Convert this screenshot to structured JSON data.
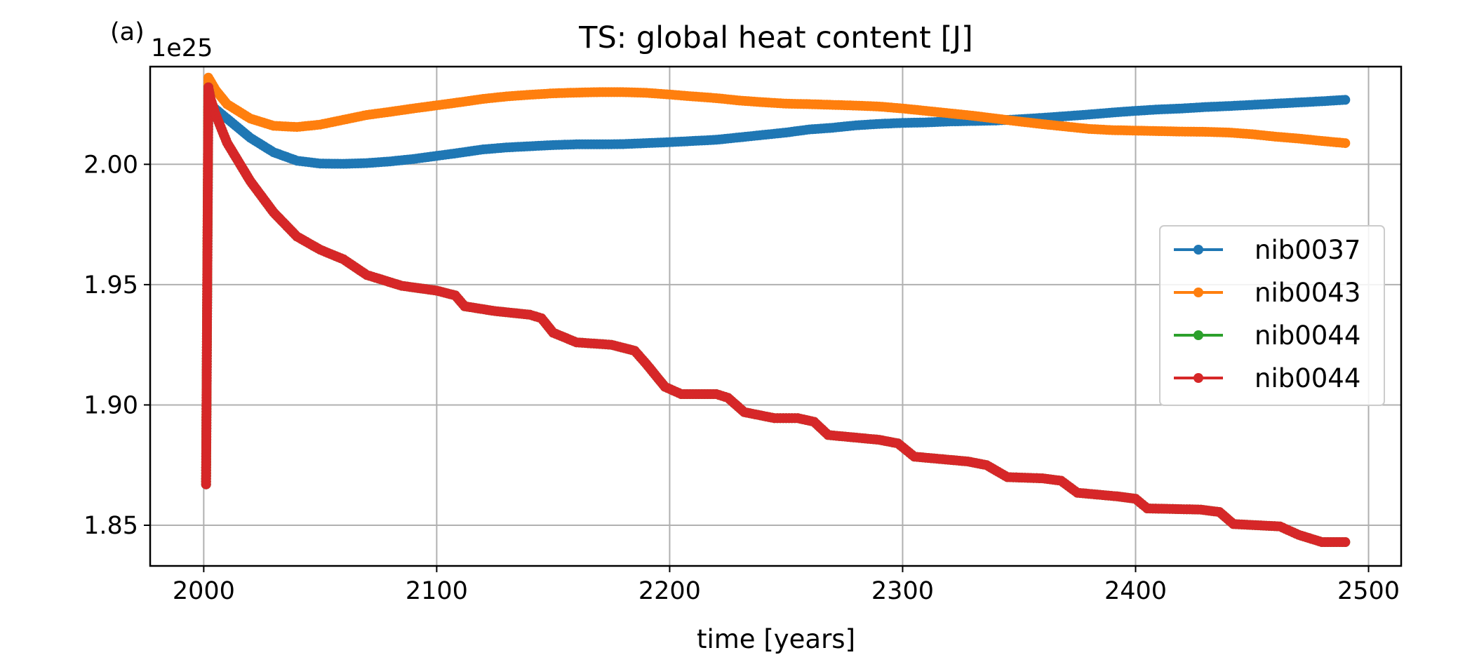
{
  "panel_label": "(a)",
  "offset_label": "1e25",
  "chart_data": {
    "type": "line",
    "title": "TS: global heat content [J]",
    "xlabel": "time [years]",
    "ylabel": "",
    "xlim": [
      1977,
      2514
    ],
    "ylim": [
      1.8331,
      2.0406
    ],
    "xticks": [
      2000,
      2100,
      2200,
      2300,
      2400,
      2500
    ],
    "xtick_labels": [
      "2000",
      "2100",
      "2200",
      "2300",
      "2400",
      "2500"
    ],
    "yticks": [
      1.85,
      1.9,
      1.95,
      2.0
    ],
    "ytick_labels": [
      "1.85",
      "1.90",
      "1.95",
      "2.00"
    ],
    "y_scale_factor": "1e25",
    "grid": true,
    "legend_position": "center-right",
    "series": [
      {
        "name": "nib0037",
        "color": "#1f77b4",
        "x": [
          2001,
          2002,
          2005,
          2010,
          2020,
          2030,
          2040,
          2050,
          2060,
          2070,
          2080,
          2090,
          2100,
          2110,
          2120,
          2130,
          2140,
          2150,
          2160,
          2170,
          2180,
          2190,
          2200,
          2210,
          2220,
          2230,
          2240,
          2250,
          2260,
          2270,
          2280,
          2290,
          2300,
          2310,
          2320,
          2330,
          2340,
          2350,
          2360,
          2370,
          2380,
          2390,
          2400,
          2410,
          2420,
          2430,
          2440,
          2450,
          2460,
          2470,
          2480,
          2490
        ],
        "y": [
          1.867,
          2.025,
          2.023,
          2.019,
          2.011,
          2.005,
          2.0015,
          2.0003,
          2.0002,
          2.0005,
          2.0012,
          2.0022,
          2.0035,
          2.0048,
          2.0062,
          2.007,
          2.0075,
          2.008,
          2.0083,
          2.0083,
          2.0084,
          2.0088,
          2.0092,
          2.0097,
          2.0102,
          2.0112,
          2.0122,
          2.0132,
          2.0145,
          2.0152,
          2.0162,
          2.0168,
          2.0172,
          2.0174,
          2.0178,
          2.018,
          2.0182,
          2.0187,
          2.0193,
          2.02,
          2.0207,
          2.0215,
          2.0222,
          2.0228,
          2.0232,
          2.0238,
          2.0242,
          2.0247,
          2.0252,
          2.0257,
          2.0262,
          2.0268
        ]
      },
      {
        "name": "nib0043",
        "color": "#ff7f0e",
        "x": [
          2001,
          2002,
          2005,
          2010,
          2020,
          2030,
          2040,
          2050,
          2060,
          2070,
          2080,
          2090,
          2100,
          2110,
          2120,
          2130,
          2140,
          2150,
          2160,
          2170,
          2180,
          2190,
          2200,
          2210,
          2220,
          2230,
          2240,
          2250,
          2260,
          2270,
          2280,
          2290,
          2300,
          2310,
          2320,
          2330,
          2340,
          2350,
          2360,
          2370,
          2380,
          2390,
          2400,
          2410,
          2420,
          2430,
          2440,
          2450,
          2460,
          2470,
          2480,
          2490
        ],
        "y": [
          1.868,
          2.036,
          2.031,
          2.025,
          2.019,
          2.016,
          2.0155,
          2.0165,
          2.0185,
          2.0205,
          2.0218,
          2.0232,
          2.0245,
          2.0258,
          2.0272,
          2.0282,
          2.0289,
          2.0295,
          2.0298,
          2.03,
          2.03,
          2.0297,
          2.029,
          2.0282,
          2.0275,
          2.0265,
          2.0258,
          2.0252,
          2.025,
          2.0247,
          2.0244,
          2.024,
          2.0232,
          2.0222,
          2.0212,
          2.0202,
          2.019,
          2.0178,
          2.0167,
          2.0157,
          2.0147,
          2.0142,
          2.014,
          2.0138,
          2.0136,
          2.0135,
          2.0132,
          2.0125,
          2.0115,
          2.0107,
          2.0097,
          2.0088
        ]
      },
      {
        "name": "nib0044",
        "color": "#2ca02c",
        "x": [
          2001,
          2002,
          2003,
          2005,
          2010,
          2020,
          2030,
          2040,
          2050,
          2060,
          2070,
          2075,
          2085,
          2100,
          2108,
          2112,
          2125,
          2140,
          2145,
          2150,
          2160,
          2175,
          2185,
          2190,
          2198,
          2205,
          2220,
          2225,
          2232,
          2245,
          2255,
          2262,
          2268,
          2290,
          2298,
          2305,
          2328,
          2336,
          2345,
          2360,
          2368,
          2375,
          2392,
          2400,
          2405,
          2428,
          2436,
          2442,
          2462,
          2470,
          2480,
          2490
        ],
        "y": [
          1.867,
          2.032,
          2.027,
          2.021,
          2.009,
          1.993,
          1.98,
          1.97,
          1.9645,
          1.9605,
          1.954,
          1.9525,
          1.9495,
          1.9475,
          1.9455,
          1.941,
          1.939,
          1.9375,
          1.936,
          1.93,
          1.926,
          1.925,
          1.9225,
          1.917,
          1.9075,
          1.9045,
          1.9045,
          1.903,
          1.897,
          1.8945,
          1.8945,
          1.893,
          1.8875,
          1.8855,
          1.884,
          1.8785,
          1.8765,
          1.875,
          1.87,
          1.8695,
          1.8685,
          1.8635,
          1.862,
          1.861,
          1.857,
          1.8565,
          1.8555,
          1.8505,
          1.8495,
          1.846,
          1.843,
          1.843
        ]
      },
      {
        "name": "nib0044",
        "color": "#d62728",
        "x": [
          2001,
          2002,
          2003,
          2005,
          2010,
          2020,
          2030,
          2040,
          2050,
          2060,
          2070,
          2075,
          2085,
          2100,
          2108,
          2112,
          2125,
          2140,
          2145,
          2150,
          2160,
          2175,
          2185,
          2190,
          2198,
          2205,
          2220,
          2225,
          2232,
          2245,
          2255,
          2262,
          2268,
          2290,
          2298,
          2305,
          2328,
          2336,
          2345,
          2360,
          2368,
          2375,
          2392,
          2400,
          2405,
          2428,
          2436,
          2442,
          2462,
          2470,
          2480,
          2490
        ],
        "y": [
          1.867,
          2.032,
          2.027,
          2.021,
          2.009,
          1.993,
          1.98,
          1.97,
          1.9645,
          1.9605,
          1.954,
          1.9525,
          1.9495,
          1.9475,
          1.9455,
          1.941,
          1.939,
          1.9375,
          1.936,
          1.93,
          1.926,
          1.925,
          1.9225,
          1.917,
          1.9075,
          1.9045,
          1.9045,
          1.903,
          1.897,
          1.8945,
          1.8945,
          1.893,
          1.8875,
          1.8855,
          1.884,
          1.8785,
          1.8765,
          1.875,
          1.87,
          1.8695,
          1.8685,
          1.8635,
          1.862,
          1.861,
          1.857,
          1.8565,
          1.8555,
          1.8505,
          1.8495,
          1.846,
          1.843,
          1.843
        ]
      }
    ]
  }
}
